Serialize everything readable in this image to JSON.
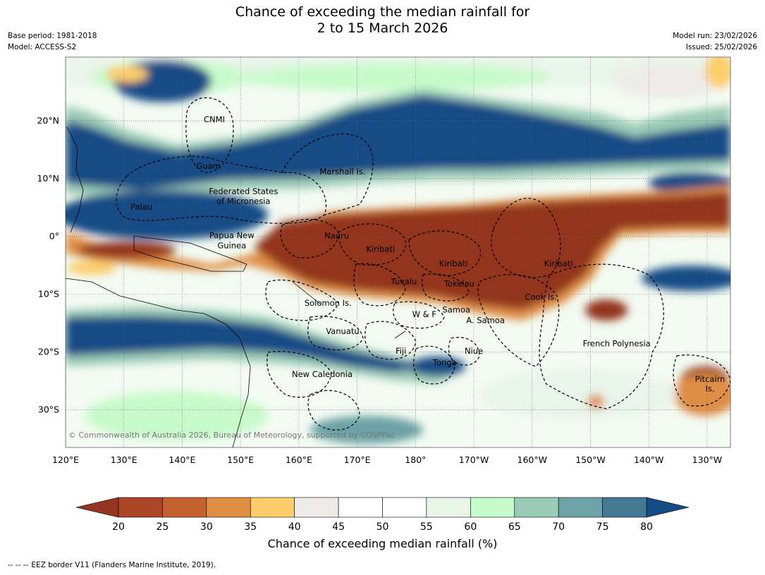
{
  "title": {
    "line1": "Chance of exceeding the median rainfall for",
    "line2": "2 to 15 March 2026"
  },
  "meta": {
    "base_period": "Base period: 1981-2018",
    "model": "Model: ACCESS-S2",
    "model_run": "Model run: 23/02/2026",
    "issued": "Issued: 25/02/2026"
  },
  "map": {
    "lon_ticks": [
      "120°E",
      "130°E",
      "140°E",
      "150°E",
      "160°E",
      "170°E",
      "180°",
      "170°W",
      "160°W",
      "150°W",
      "140°W",
      "130°W"
    ],
    "lat_ticks": [
      "20°N",
      "10°N",
      "0°",
      "10°S",
      "20°S",
      "30°S"
    ],
    "lon_range": [
      120,
      234
    ],
    "lat_range": [
      -36.5,
      31
    ],
    "copyright": "© Commonwealth of Australia 2026, Bureau of Meteorology, supported by COSPPac",
    "regions": [
      {
        "name": "CNMI",
        "lon": 145.5,
        "lat": 20.2
      },
      {
        "name": "Guam",
        "lon": 144.5,
        "lat": 12.2
      },
      {
        "name": "Marshall Is.",
        "lon": 167.5,
        "lat": 11.2
      },
      {
        "name": "Federated States",
        "lon": 150.5,
        "lat": 7.8
      },
      {
        "name": "of Micronesia",
        "lon": 150.5,
        "lat": 6.1
      },
      {
        "name": "Palau",
        "lon": 133,
        "lat": 5.1
      },
      {
        "name": "Papua New",
        "lon": 148.5,
        "lat": 0.2
      },
      {
        "name": "Guinea",
        "lon": 148.5,
        "lat": -1.6
      },
      {
        "name": "Nauru",
        "lon": 166.5,
        "lat": 0.1
      },
      {
        "name": "Kiribati",
        "lon": 174,
        "lat": -2.2
      },
      {
        "name": "Kiribati",
        "lon": 186.5,
        "lat": -4.7
      },
      {
        "name": "Kiribati",
        "lon": 204.5,
        "lat": -4.7
      },
      {
        "name": "Tuvalu",
        "lon": 178,
        "lat": -7.8
      },
      {
        "name": "Tokelau",
        "lon": 187.5,
        "lat": -8.2
      },
      {
        "name": "Cook Is.",
        "lon": 201.5,
        "lat": -10.5
      },
      {
        "name": "Solomon Is.",
        "lon": 165,
        "lat": -11.5
      },
      {
        "name": "W & F",
        "lon": 181.5,
        "lat": -13.5
      },
      {
        "name": "Samoa",
        "lon": 187,
        "lat": -12.7
      },
      {
        "name": "A. Samoa",
        "lon": 192,
        "lat": -14.5
      },
      {
        "name": "Vanuatu",
        "lon": 167.5,
        "lat": -16.4
      },
      {
        "name": "Fiji",
        "lon": 177.5,
        "lat": -19.8
      },
      {
        "name": "Niue",
        "lon": 190,
        "lat": -19.8
      },
      {
        "name": "French Polynesia",
        "lon": 214.5,
        "lat": -18.5
      },
      {
        "name": "Tonga",
        "lon": 185,
        "lat": -21.8
      },
      {
        "name": "New Caledonia",
        "lon": 164,
        "lat": -23.8
      },
      {
        "name": "Pitcairn",
        "lon": 230.5,
        "lat": -24.7
      },
      {
        "name": "Is.",
        "lon": 230.5,
        "lat": -26.3
      }
    ]
  },
  "colorbar": {
    "levels": [
      "20",
      "25",
      "30",
      "35",
      "40",
      "45",
      "50",
      "55",
      "60",
      "65",
      "70",
      "75",
      "80"
    ],
    "colors": [
      "#ab4527",
      "#c46130",
      "#df8e44",
      "#fdcd6c",
      "#eeece8",
      "#ffffff",
      "#ffffff",
      "#e8f6e8",
      "#c8fbcb",
      "#9bcbb7",
      "#6da3a6",
      "#457893"
    ],
    "under_color": "#93351f",
    "over_color": "#134c85",
    "label": "Chance of exceeding median rainfall (%)"
  },
  "footer": {
    "legend_symbol": "--  --  --",
    "text": "EEZ border V11 (Flanders Marine Institute, 2019)."
  }
}
